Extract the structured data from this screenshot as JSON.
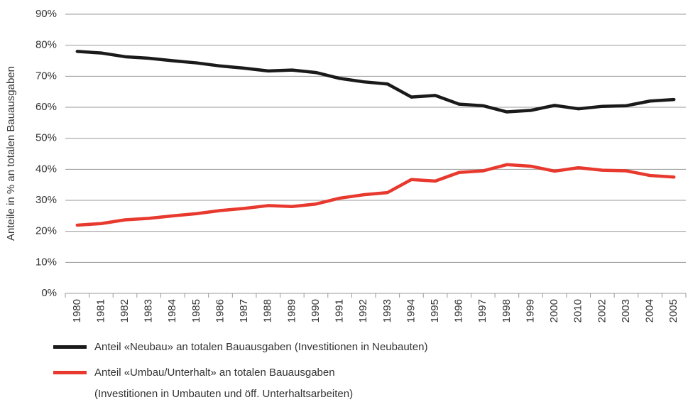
{
  "chart_data": {
    "type": "line",
    "y_label": "Anteile in % an totalen Bauausgaben",
    "categories": [
      "1980",
      "1981",
      "1982",
      "1983",
      "1984",
      "1985",
      "1986",
      "1987",
      "1988",
      "1989",
      "1990",
      "1991",
      "1992",
      "1993",
      "1994",
      "1995",
      "1996",
      "1997",
      "1998",
      "1999",
      "2000",
      "2010",
      "2002",
      "2003",
      "2004",
      "2005"
    ],
    "series": [
      {
        "name": "Anteil «Neubau» an totalen Bauausgaben (Investitionen in Neubauten)",
        "color": "#1a1a1a",
        "values": [
          78,
          77.5,
          76.3,
          75.8,
          75,
          74.3,
          73.3,
          72.6,
          71.7,
          72,
          71.2,
          69.3,
          68.2,
          67.5,
          63.3,
          63.8,
          61,
          60.5,
          58.5,
          59,
          60.6,
          59.5,
          60.3,
          60.5,
          62,
          62.5
        ]
      },
      {
        "name": "Anteil «Umbau/Unterhalt» an totalen Bauausgaben\n(Investitionen in Umbauten und öff. Unterhaltsarbeiten)",
        "color": "#e8392e",
        "values": [
          22,
          22.5,
          23.7,
          24.2,
          25,
          25.7,
          26.7,
          27.4,
          28.3,
          28,
          28.8,
          30.7,
          31.8,
          32.5,
          36.7,
          36.2,
          39,
          39.5,
          41.5,
          41,
          39.4,
          40.5,
          39.7,
          39.5,
          38,
          37.5
        ]
      }
    ],
    "ylim": [
      0,
      90
    ],
    "yticks": [
      {
        "value": 0,
        "label": "0%"
      },
      {
        "value": 10,
        "label": "10%"
      },
      {
        "value": 20,
        "label": "20%"
      },
      {
        "value": 30,
        "label": "30%"
      },
      {
        "value": 40,
        "label": "40%"
      },
      {
        "value": 50,
        "label": "50%"
      },
      {
        "value": 60,
        "label": "60%"
      },
      {
        "value": 70,
        "label": "70%"
      },
      {
        "value": 80,
        "label": "80%"
      },
      {
        "value": 90,
        "label": "90%"
      }
    ],
    "grid": true
  }
}
